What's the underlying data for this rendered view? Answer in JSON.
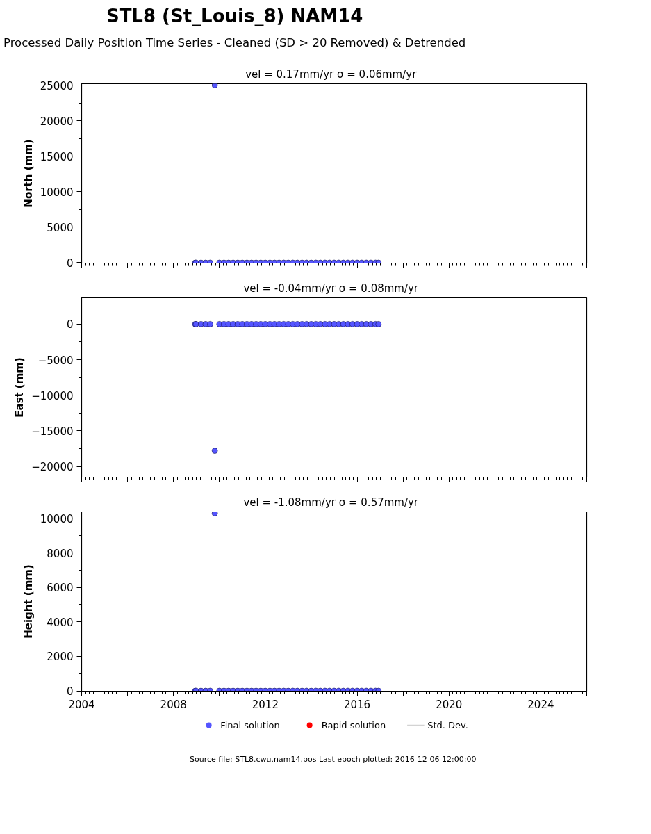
{
  "chart_data": [
    {
      "type": "other",
      "title": "STL8 (St_Louis_8) NAM14",
      "subtitle": "Processed Daily Position Time Series - Cleaned (SD > 20 Removed) & Detrended"
    },
    {
      "type": "scatter",
      "title": "vel = 0.17mm/yr   σ = 0.06mm/yr",
      "ylabel": "North (mm)",
      "marker": "circle",
      "grid": false,
      "legend": false,
      "tick_labels": "y",
      "xlim": [
        2004,
        2026
      ],
      "xticks": [
        {
          "value": 2004,
          "label": null
        },
        {
          "value": 2006,
          "label": null
        },
        {
          "value": 2008,
          "label": null
        },
        {
          "value": 2010,
          "label": null
        },
        {
          "value": 2012,
          "label": null
        },
        {
          "value": 2014,
          "label": null
        },
        {
          "value": 2016,
          "label": null
        },
        {
          "value": 2018,
          "label": null
        },
        {
          "value": 2020,
          "label": null
        },
        {
          "value": 2022,
          "label": null
        },
        {
          "value": 2024,
          "label": null
        },
        {
          "value": 2026,
          "label": null
        }
      ],
      "ylim": [
        -50,
        25200
      ],
      "yticks": [
        0,
        5000,
        10000,
        15000,
        20000,
        25000
      ],
      "series": [
        {
          "color": "#5555ff",
          "x": [
            2008.95,
            2008.98,
            2009.2,
            2009.4,
            2009.6,
            2009.8,
            2010.0,
            2010.2,
            2010.4,
            2010.6,
            2010.8,
            2011.0,
            2011.2,
            2011.4,
            2011.6,
            2011.8,
            2012.0,
            2012.2,
            2012.4,
            2012.6,
            2012.8,
            2013.0,
            2013.2,
            2013.4,
            2013.6,
            2013.8,
            2014.0,
            2014.2,
            2014.4,
            2014.6,
            2014.8,
            2015.0,
            2015.2,
            2015.4,
            2015.6,
            2015.8,
            2016.0,
            2016.2,
            2016.4,
            2016.6,
            2016.8,
            2016.93
          ],
          "values": [
            0,
            0,
            0,
            0,
            0,
            25000,
            0,
            0,
            0,
            0,
            0,
            0,
            0,
            0,
            0,
            0,
            0,
            0,
            0,
            0,
            0,
            0,
            0,
            0,
            0,
            0,
            0,
            0,
            0,
            0,
            0,
            0,
            0,
            0,
            0,
            0,
            0,
            0,
            0,
            0,
            0,
            0
          ]
        }
      ]
    },
    {
      "type": "scatter",
      "title": "vel = -0.04mm/yr   σ = 0.08mm/yr",
      "ylabel": "East (mm)",
      "marker": "circle",
      "grid": false,
      "legend": false,
      "tick_labels": "y",
      "xlim": [
        2004,
        2026
      ],
      "xticks": [
        {
          "value": 2004,
          "label": null
        },
        {
          "value": 2006,
          "label": null
        },
        {
          "value": 2008,
          "label": null
        },
        {
          "value": 2010,
          "label": null
        },
        {
          "value": 2012,
          "label": null
        },
        {
          "value": 2014,
          "label": null
        },
        {
          "value": 2016,
          "label": null
        },
        {
          "value": 2018,
          "label": null
        },
        {
          "value": 2020,
          "label": null
        },
        {
          "value": 2022,
          "label": null
        },
        {
          "value": 2024,
          "label": null
        },
        {
          "value": 2026,
          "label": null
        }
      ],
      "ylim": [
        -21500,
        3700
      ],
      "yticks": [
        {
          "value": -20000,
          "label": "−20000"
        },
        {
          "value": -15000,
          "label": "−15000"
        },
        {
          "value": -10000,
          "label": "−10000"
        },
        {
          "value": -5000,
          "label": "−5000"
        },
        0
      ],
      "series": [
        {
          "color": "#5555ff",
          "x": [
            2008.95,
            2008.98,
            2009.2,
            2009.4,
            2009.6,
            2009.8,
            2010.0,
            2010.2,
            2010.4,
            2010.6,
            2010.8,
            2011.0,
            2011.2,
            2011.4,
            2011.6,
            2011.8,
            2012.0,
            2012.2,
            2012.4,
            2012.6,
            2012.8,
            2013.0,
            2013.2,
            2013.4,
            2013.6,
            2013.8,
            2014.0,
            2014.2,
            2014.4,
            2014.6,
            2014.8,
            2015.0,
            2015.2,
            2015.4,
            2015.6,
            2015.8,
            2016.0,
            2016.2,
            2016.4,
            2016.6,
            2016.8,
            2016.93
          ],
          "values": [
            0,
            0,
            0,
            0,
            0,
            -17800,
            0,
            0,
            0,
            0,
            0,
            0,
            0,
            0,
            0,
            0,
            0,
            0,
            0,
            0,
            0,
            0,
            0,
            0,
            0,
            0,
            0,
            0,
            0,
            0,
            0,
            0,
            0,
            0,
            0,
            0,
            0,
            0,
            0,
            0,
            0,
            0
          ]
        }
      ]
    },
    {
      "type": "scatter",
      "title": "vel = -1.08mm/yr   σ = 0.57mm/yr",
      "ylabel": "Height (mm)",
      "marker": "circle",
      "grid": false,
      "legend": "bottom",
      "annotations": [
        "Source file: STL8.cwu.nam14.pos  Last epoch plotted: 2016-12-06 12:00:00"
      ],
      "xlim": [
        2004,
        2026
      ],
      "xticks": [
        2004,
        {
          "value": 2006,
          "label": null
        },
        2008,
        {
          "value": 2010,
          "label": null
        },
        2012,
        {
          "value": 2014,
          "label": null
        },
        2016,
        {
          "value": 2018,
          "label": null
        },
        2020,
        {
          "value": 2022,
          "label": null
        },
        2024,
        {
          "value": 2026,
          "label": null
        }
      ],
      "ylim": [
        -20,
        10380
      ],
      "yticks": [
        0,
        2000,
        4000,
        6000,
        8000,
        10000
      ],
      "series": [
        {
          "name": "Final solution",
          "color": "#5555ff",
          "x": [
            2008.95,
            2008.98,
            2009.2,
            2009.4,
            2009.6,
            2009.8,
            2010.0,
            2010.2,
            2010.4,
            2010.6,
            2010.8,
            2011.0,
            2011.2,
            2011.4,
            2011.6,
            2011.8,
            2012.0,
            2012.2,
            2012.4,
            2012.6,
            2012.8,
            2013.0,
            2013.2,
            2013.4,
            2013.6,
            2013.8,
            2014.0,
            2014.2,
            2014.4,
            2014.6,
            2014.8,
            2015.0,
            2015.2,
            2015.4,
            2015.6,
            2015.8,
            2016.0,
            2016.2,
            2016.4,
            2016.6,
            2016.8,
            2016.93
          ],
          "values": [
            0,
            0,
            0,
            0,
            0,
            10300,
            0,
            0,
            0,
            0,
            0,
            0,
            0,
            0,
            0,
            0,
            0,
            0,
            0,
            0,
            0,
            0,
            0,
            0,
            0,
            0,
            0,
            0,
            0,
            0,
            0,
            0,
            0,
            0,
            0,
            0,
            0,
            0,
            0,
            0,
            0,
            0
          ]
        },
        {
          "name": "Rapid solution",
          "color": "#ff0000"
        },
        {
          "name": "Std. Dev.",
          "type": "line",
          "color": "#d3d3d3"
        }
      ]
    }
  ]
}
